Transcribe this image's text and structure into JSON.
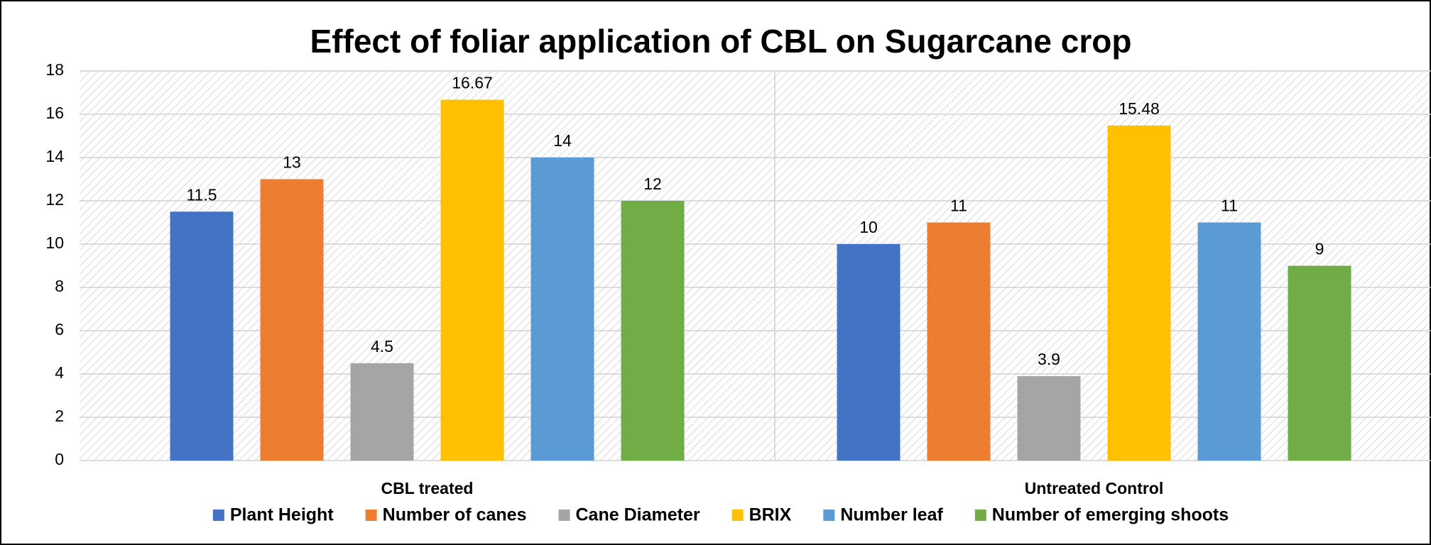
{
  "chart_data": {
    "type": "bar",
    "title": "Effect of foliar application of CBL on Sugarcane crop",
    "categories": [
      "CBL treated",
      "Untreated Control"
    ],
    "series": [
      {
        "name": "Plant Height",
        "color": "#4472c4",
        "values": [
          11.5,
          10
        ]
      },
      {
        "name": "Number of canes",
        "color": "#ed7d31",
        "values": [
          13,
          11
        ]
      },
      {
        "name": "Cane Diameter",
        "color": "#a5a5a5",
        "values": [
          4.5,
          3.9
        ]
      },
      {
        "name": "BRIX",
        "color": "#ffc000",
        "values": [
          16.67,
          15.48
        ]
      },
      {
        "name": "Number leaf",
        "color": "#5b9bd5",
        "values": [
          14,
          11
        ]
      },
      {
        "name": "Number of emerging shoots",
        "color": "#70ad47",
        "values": [
          12,
          9
        ]
      }
    ],
    "ylim": [
      0,
      18
    ],
    "yticks": [
      0,
      2,
      4,
      6,
      8,
      10,
      12,
      14,
      16,
      18
    ],
    "grid": true,
    "legend": "bottom"
  }
}
